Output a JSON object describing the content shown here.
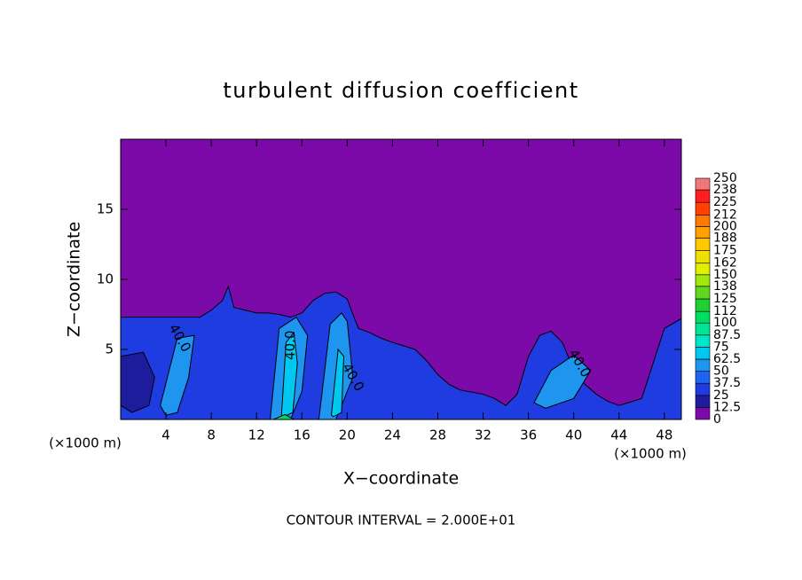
{
  "chart_data": {
    "type": "contour",
    "title": "turbulent diffusion coefficient",
    "x_label": "X−coordinate",
    "y_label": "Z−coordinate",
    "x_unit_left": "(×1000 m)",
    "x_unit_right": "(×1000 m)",
    "footnote": "CONTOUR INTERVAL = 2.000E+01",
    "xlim": [
      0,
      49.5
    ],
    "ylim": [
      0,
      20
    ],
    "xticks": [
      4,
      8,
      12,
      16,
      20,
      24,
      28,
      32,
      36,
      40,
      44,
      48
    ],
    "yticks": [
      5,
      10,
      15
    ],
    "colorbar": {
      "levels": [
        0,
        12.5,
        25,
        37.5,
        50,
        62.5,
        75,
        87.5,
        100,
        112,
        125,
        138,
        150,
        162,
        175,
        188,
        200,
        212,
        225,
        238,
        250
      ],
      "colors": [
        "#7b0aa8",
        "#1c1c9c",
        "#1e3ce0",
        "#1e64f0",
        "#1e96f0",
        "#00c8f0",
        "#00e6c8",
        "#00e696",
        "#00dc64",
        "#20d030",
        "#60d820",
        "#a0e810",
        "#e0f000",
        "#f0e000",
        "#ffc800",
        "#ffa000",
        "#ff7800",
        "#ff4000",
        "#ff1e1e",
        "#f07878"
      ]
    },
    "regions": [
      {
        "level": 0,
        "x": [
          0,
          49.5,
          49.5,
          0
        ],
        "y": [
          0,
          0,
          20,
          20
        ]
      },
      {
        "level": 25,
        "x": [
          0,
          1.5,
          7,
          8,
          9,
          9.5,
          10,
          11,
          12,
          13,
          14,
          15,
          16,
          17,
          18,
          19,
          20,
          20.5,
          21,
          22,
          23,
          24,
          26,
          27,
          28,
          29,
          30,
          32,
          33,
          34,
          35,
          36,
          37,
          38,
          39,
          40,
          41,
          42,
          43,
          44,
          46,
          47,
          48,
          49.5,
          49.5,
          0
        ],
        "y": [
          7.3,
          7.3,
          7.3,
          7.8,
          8.5,
          9.5,
          8.0,
          7.8,
          7.6,
          7.6,
          7.5,
          7.3,
          7.6,
          8.5,
          9.0,
          9.1,
          8.6,
          7.5,
          6.5,
          6.2,
          5.8,
          5.5,
          5.0,
          4.2,
          3.2,
          2.5,
          2.1,
          1.8,
          1.5,
          1.0,
          1.8,
          4.5,
          6.0,
          6.3,
          5.5,
          3.5,
          2.5,
          1.8,
          1.3,
          1.0,
          1.5,
          4.0,
          6.5,
          7.2,
          0,
          0
        ]
      },
      {
        "level": 12.5,
        "x": [
          0,
          2,
          3,
          2.5,
          1,
          0
        ],
        "y": [
          4.5,
          4.8,
          3,
          1,
          0.5,
          1
        ]
      },
      {
        "level": 50,
        "x": [
          3.5,
          5,
          6.5,
          6,
          5,
          4
        ],
        "y": [
          1,
          5.8,
          6.0,
          3,
          0.5,
          0.3
        ]
      },
      {
        "level": 50,
        "x": [
          13.2,
          14,
          15.5,
          16.5,
          16,
          15,
          13.5
        ],
        "y": [
          0,
          6.5,
          7.3,
          6.0,
          2,
          0,
          0
        ]
      },
      {
        "level": 50,
        "x": [
          17.5,
          18.5,
          19.5,
          20,
          20.5,
          19,
          17.8
        ],
        "y": [
          0,
          6.8,
          7.6,
          7.0,
          3,
          0,
          0
        ]
      },
      {
        "level": 50,
        "x": [
          36.5,
          38,
          40,
          41.5,
          40,
          37.5
        ],
        "y": [
          1.2,
          3.5,
          4.6,
          3.5,
          1.5,
          0.8
        ]
      },
      {
        "level": 62.5,
        "x": [
          14.2,
          14.6,
          15.3,
          15.6,
          15.2,
          14.4
        ],
        "y": [
          0.3,
          5.5,
          6.2,
          4,
          0.5,
          0.2
        ]
      },
      {
        "level": 62.5,
        "x": [
          18.6,
          19.2,
          19.7,
          19.5,
          18.8
        ],
        "y": [
          0.3,
          5.0,
          4.5,
          0.5,
          0.2
        ]
      },
      {
        "level": 100,
        "x": [
          13.5,
          14.5,
          15.3,
          14.5
        ],
        "y": [
          0,
          0.35,
          0,
          0
        ]
      }
    ],
    "contour_labels": [
      {
        "text": "40.0",
        "x": 5.2,
        "y": 5.8
      },
      {
        "text": "40.0",
        "x": 15.0,
        "y": 5.3
      },
      {
        "text": "40.0",
        "x": 20.5,
        "y": 3.0
      },
      {
        "text": "40.0",
        "x": 40.5,
        "y": 4.0
      }
    ]
  }
}
